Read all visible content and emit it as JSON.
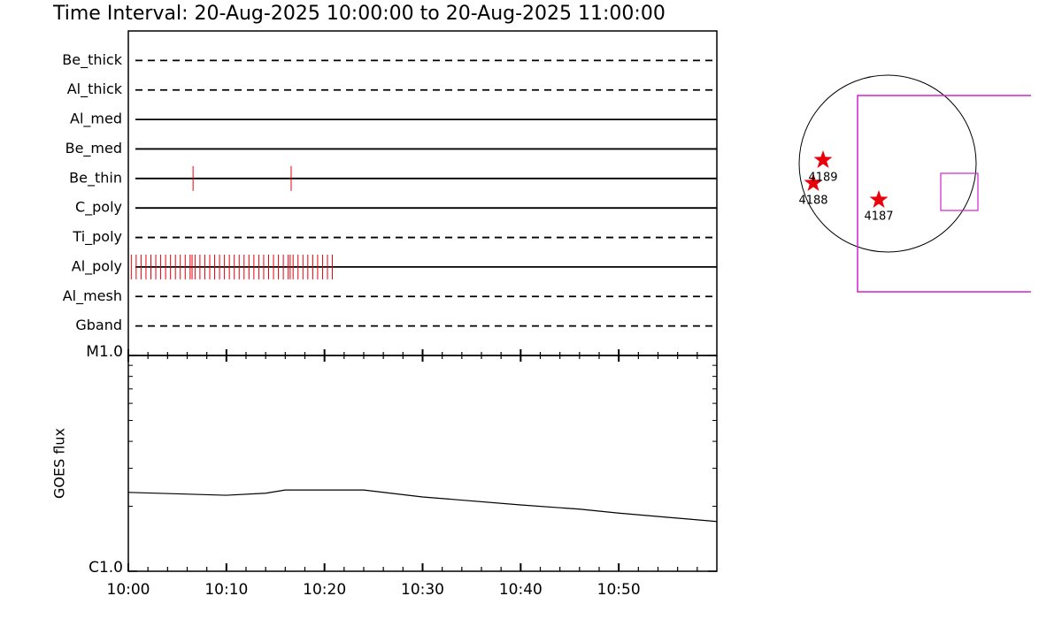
{
  "chart_data": [
    {
      "type": "timeline",
      "title": "Time Interval: 20-Aug-2025 10:00:00 to 20-Aug-2025 11:00:00",
      "xlim": [
        0,
        60
      ],
      "color": "#e8000b",
      "rows": [
        {
          "name": "Be_thick",
          "style": "dashed",
          "times": []
        },
        {
          "name": "Al_thick",
          "style": "dashed",
          "times": []
        },
        {
          "name": "Al_med",
          "style": "solid",
          "times": []
        },
        {
          "name": "Be_med",
          "style": "solid",
          "times": []
        },
        {
          "name": "Be_thin",
          "style": "solid",
          "times": [
            6.6,
            16.6
          ]
        },
        {
          "name": "C_poly",
          "style": "solid",
          "times": []
        },
        {
          "name": "Ti_poly",
          "style": "dashed",
          "times": []
        },
        {
          "name": "Al_poly",
          "style": "solid",
          "times": [
            0.3,
            0.8,
            1.3,
            1.8,
            2.3,
            2.8,
            3.3,
            3.8,
            4.3,
            4.8,
            5.3,
            5.8,
            6.3,
            6.5,
            6.8,
            7.3,
            7.8,
            8.3,
            8.8,
            9.3,
            9.8,
            10.3,
            10.8,
            11.3,
            11.8,
            12.3,
            12.8,
            13.3,
            13.8,
            14.3,
            14.8,
            15.3,
            15.8,
            16.3,
            16.5,
            16.8,
            17.3,
            17.8,
            18.3,
            18.8,
            19.3,
            19.8,
            20.3,
            20.8
          ]
        },
        {
          "name": "Al_mesh",
          "style": "dashed",
          "times": []
        },
        {
          "name": "Gband",
          "style": "dashed",
          "times": []
        }
      ]
    },
    {
      "type": "line",
      "ylabel": "GOES flux",
      "log": true,
      "color": "#000000",
      "x": [
        0,
        10,
        14,
        16,
        24,
        30,
        40,
        46,
        50,
        60
      ],
      "values": [
        2.32e-06,
        2.25e-06,
        2.3e-06,
        2.38e-06,
        2.38e-06,
        2.21e-06,
        2.03e-06,
        1.94e-06,
        1.86e-06,
        1.7e-06
      ],
      "xlim": [
        0,
        60
      ],
      "xticks": [
        {
          "value": 0,
          "label": "10:00"
        },
        {
          "value": 10,
          "label": "10:10"
        },
        {
          "value": 20,
          "label": "10:20"
        },
        {
          "value": 30,
          "label": "10:30"
        },
        {
          "value": 40,
          "label": "10:40"
        },
        {
          "value": 50,
          "label": "10:50"
        }
      ],
      "xminorticks": [
        2,
        4,
        6,
        8,
        12,
        14,
        16,
        18,
        22,
        24,
        26,
        28,
        32,
        34,
        36,
        38,
        42,
        44,
        46,
        48,
        52,
        54,
        56,
        58
      ],
      "ylim": [
        1e-06,
        1e-05
      ],
      "yticks": [
        {
          "value": 1e-06,
          "label": "C1.0"
        },
        {
          "value": 1e-05,
          "label": "M1.0"
        }
      ],
      "yminorticks": [
        2e-06,
        3e-06,
        4e-06,
        5e-06,
        6e-06,
        7e-06,
        8e-06,
        9e-06
      ]
    }
  ],
  "map": {
    "regions": [
      {
        "label": "4189"
      },
      {
        "label": "4188"
      },
      {
        "label": "4187"
      }
    ]
  }
}
